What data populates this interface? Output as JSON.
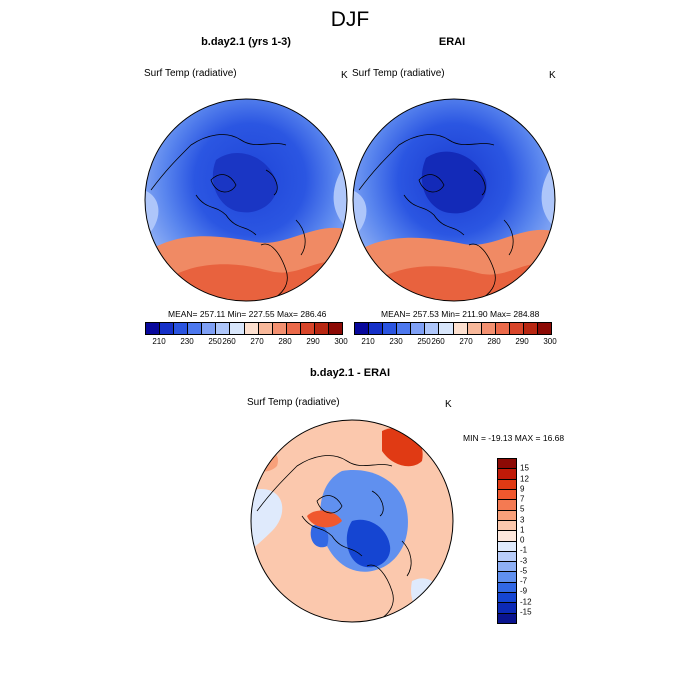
{
  "figure_title": "DJF",
  "panels": [
    {
      "title": "b.day2.1 (yrs 1-3)",
      "variable": "Surf Temp (radiative)",
      "units": "K",
      "stats": "MEAN= 257.11  Min= 227.55  Max= 286.46"
    },
    {
      "title": "ERAI",
      "variable": "Surf Temp (radiative)",
      "units": "K",
      "stats": "MEAN= 257.53  Min= 211.90  Max= 284.88"
    },
    {
      "title": "b.day2.1 - ERAI",
      "variable": "Surf Temp (radiative)",
      "units": "K",
      "stats": "MIN = -19.13 MAX =  16.68"
    }
  ],
  "colorbar_main": {
    "labels": [
      "210",
      "230",
      "250",
      "260",
      "270",
      "280",
      "290",
      "300"
    ],
    "colors": [
      "#08089c",
      "#1530c8",
      "#2a54e0",
      "#4d78ee",
      "#7fa0f5",
      "#aec6fa",
      "#d8e6fb",
      "#fde0cf",
      "#f8b89a",
      "#f39070",
      "#eb6a4a",
      "#d8452a",
      "#b82712",
      "#8c0a05"
    ]
  },
  "colorbar_diff": {
    "labels": [
      "15",
      "12",
      "9",
      "7",
      "5",
      "3",
      "1",
      "0",
      "-1",
      "-3",
      "-5",
      "-7",
      "-9",
      "-12",
      "-15"
    ],
    "colors": [
      "#8c0a05",
      "#c01a08",
      "#e03a14",
      "#f0582e",
      "#f47a52",
      "#f8a07a",
      "#fbc8ad",
      "#fde7dc",
      "#dfeafc",
      "#b8cdfa",
      "#8eb0f5",
      "#6090ef",
      "#3268e4",
      "#1545d2",
      "#0c2ab6",
      "#0a148f"
    ]
  }
}
